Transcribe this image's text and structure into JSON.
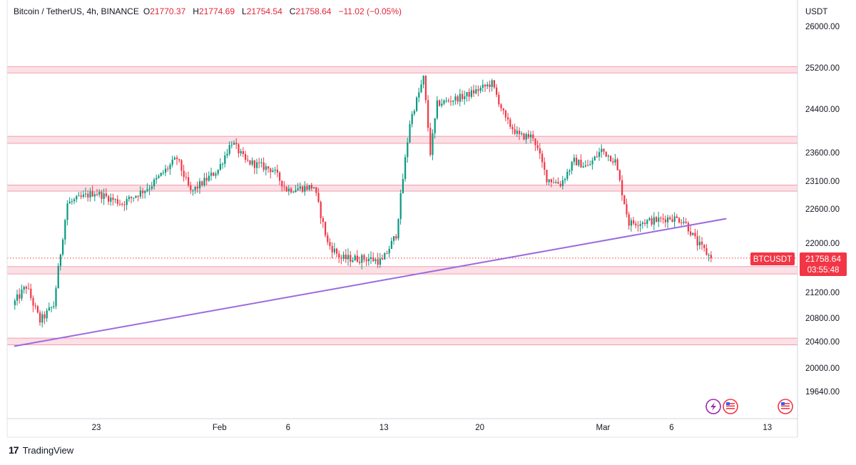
{
  "header": {
    "symbol": "Bitcoin / TetherUS, 4h, BINANCE",
    "open_label": "O",
    "open": "21770.37",
    "high_label": "H",
    "high": "21774.69",
    "low_label": "L",
    "low": "21754.54",
    "close_label": "C",
    "close": "21758.64",
    "change": "−11.02 (−0.05%)"
  },
  "price_axis": {
    "currency": "USDT",
    "ticks": [
      "26000.00",
      "25200.00",
      "24400.00",
      "23600.00",
      "23100.00",
      "22600.00",
      "22000.00",
      "21200.00",
      "20800.00",
      "20400.00",
      "20000.00",
      "19640.00"
    ]
  },
  "time_axis": {
    "labels": [
      "23",
      "Feb",
      "6",
      "13",
      "20",
      "Mar",
      "6",
      "13"
    ]
  },
  "last_price": {
    "symbol_tag": "BTCUSDT",
    "price": "21758.64",
    "countdown": "03:55:48"
  },
  "footer": {
    "brand": "TradingView",
    "logo_text": "17"
  },
  "colors": {
    "up": "#089981",
    "down": "#f23645",
    "zone": "#f7c6d0",
    "trendline": "#9c6ade",
    "price_tag": "#f23645"
  },
  "icons": [
    "flash-icon",
    "us-flag-icon",
    "us-flag-icon"
  ],
  "chart_data": {
    "type": "candlestick",
    "title": "",
    "symbol": "Bitcoin / TetherUS",
    "interval": "4h",
    "exchange": "BINANCE",
    "ylim": [
      19640,
      26000
    ],
    "x_range": [
      "2023-01-17",
      "2023-03-14"
    ],
    "time_ticks": [
      {
        "label": "23",
        "date": "2023-01-23"
      },
      {
        "label": "Feb",
        "date": "2023-02-01"
      },
      {
        "label": "6",
        "date": "2023-02-06"
      },
      {
        "label": "13",
        "date": "2023-02-13"
      },
      {
        "label": "20",
        "date": "2023-02-20"
      },
      {
        "label": "Mar",
        "date": "2023-03-01"
      },
      {
        "label": "6",
        "date": "2023-03-06"
      },
      {
        "label": "13",
        "date": "2023-03-13"
      }
    ],
    "path_points": [
      {
        "date": "2023-01-17",
        "price": 21000
      },
      {
        "date": "2023-01-18",
        "price": 21300
      },
      {
        "date": "2023-01-19",
        "price": 20750
      },
      {
        "date": "2023-01-20",
        "price": 21000
      },
      {
        "date": "2023-01-21",
        "price": 22700
      },
      {
        "date": "2023-01-22",
        "price": 22800
      },
      {
        "date": "2023-01-23",
        "price": 22900
      },
      {
        "date": "2023-01-25",
        "price": 22700
      },
      {
        "date": "2023-01-27",
        "price": 23000
      },
      {
        "date": "2023-01-29",
        "price": 23500
      },
      {
        "date": "2023-01-30",
        "price": 22900
      },
      {
        "date": "2023-02-01",
        "price": 23300
      },
      {
        "date": "2023-02-02",
        "price": 23800
      },
      {
        "date": "2023-02-03",
        "price": 23450
      },
      {
        "date": "2023-02-05",
        "price": 23300
      },
      {
        "date": "2023-02-06",
        "price": 22950
      },
      {
        "date": "2023-02-08",
        "price": 23000
      },
      {
        "date": "2023-02-09",
        "price": 22000
      },
      {
        "date": "2023-02-10",
        "price": 21750
      },
      {
        "date": "2023-02-12",
        "price": 21750
      },
      {
        "date": "2023-02-13",
        "price": 21700
      },
      {
        "date": "2023-02-14",
        "price": 22150
      },
      {
        "date": "2023-02-15",
        "price": 24150
      },
      {
        "date": "2023-02-16",
        "price": 25000
      },
      {
        "date": "2023-02-16T12:00",
        "price": 23600
      },
      {
        "date": "2023-02-17",
        "price": 24500
      },
      {
        "date": "2023-02-19",
        "price": 24650
      },
      {
        "date": "2023-02-21",
        "price": 24900
      },
      {
        "date": "2023-02-22",
        "price": 24200
      },
      {
        "date": "2023-02-23",
        "price": 23900
      },
      {
        "date": "2023-02-24",
        "price": 23900
      },
      {
        "date": "2023-02-25",
        "price": 23150
      },
      {
        "date": "2023-02-26",
        "price": 23050
      },
      {
        "date": "2023-02-27",
        "price": 23450
      },
      {
        "date": "2023-02-28",
        "price": 23350
      },
      {
        "date": "2023-03-01",
        "price": 23650
      },
      {
        "date": "2023-03-02",
        "price": 23450
      },
      {
        "date": "2023-03-03",
        "price": 22350
      },
      {
        "date": "2023-03-05",
        "price": 22400
      },
      {
        "date": "2023-03-06",
        "price": 22450
      },
      {
        "date": "2023-03-07",
        "price": 22400
      },
      {
        "date": "2023-03-08",
        "price": 22000
      },
      {
        "date": "2023-03-09",
        "price": 21758.64
      }
    ],
    "resistance_zones": [
      {
        "low": 25100,
        "high": 25220
      },
      {
        "low": 23770,
        "high": 23900
      },
      {
        "low": 22920,
        "high": 23030
      },
      {
        "low": 21500,
        "high": 21620
      },
      {
        "low": 20350,
        "high": 20460
      }
    ],
    "trendline": [
      {
        "date": "2023-01-17",
        "price": 20330
      },
      {
        "date": "2023-03-10",
        "price": 22430
      }
    ],
    "last_price": 21758.64
  }
}
